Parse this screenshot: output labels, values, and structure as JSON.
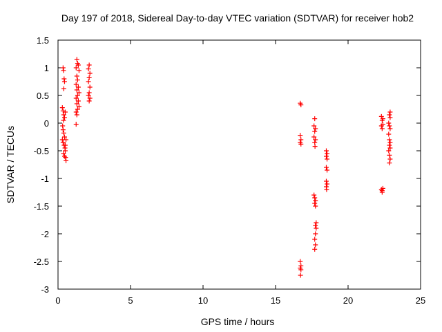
{
  "chart_data": {
    "type": "scatter",
    "title": "Day 197 of 2018, Sidereal Day-to-day VTEC variation (SDTVAR) for receiver hob2",
    "xlabel": "GPS time / hours",
    "ylabel": "SDTVAR / TECUs",
    "xlim": [
      0,
      25
    ],
    "ylim": [
      -3,
      1.5
    ],
    "xticks": [
      "0",
      "5",
      "10",
      "15",
      "20",
      "25"
    ],
    "yticks": [
      "1.5",
      "1",
      "0.5",
      "0",
      "-0.5",
      "-1",
      "-1.5",
      "-2",
      "-2.5",
      "-3"
    ],
    "grid": false,
    "marker": "+",
    "marker_color": "#ff0000",
    "series": [
      {
        "name": "hob2",
        "points": [
          [
            0.35,
            1.0
          ],
          [
            0.38,
            0.95
          ],
          [
            0.42,
            0.8
          ],
          [
            0.45,
            0.75
          ],
          [
            0.4,
            0.62
          ],
          [
            0.3,
            0.28
          ],
          [
            0.35,
            0.22
          ],
          [
            0.4,
            0.15
          ],
          [
            0.45,
            0.1
          ],
          [
            0.5,
            0.2
          ],
          [
            0.38,
            0.05
          ],
          [
            0.32,
            -0.05
          ],
          [
            0.35,
            -0.12
          ],
          [
            0.4,
            -0.18
          ],
          [
            0.45,
            -0.25
          ],
          [
            0.3,
            -0.3
          ],
          [
            0.35,
            -0.35
          ],
          [
            0.42,
            -0.4
          ],
          [
            0.48,
            -0.45
          ],
          [
            0.5,
            -0.5
          ],
          [
            0.38,
            -0.55
          ],
          [
            0.45,
            -0.6
          ],
          [
            0.52,
            -0.62
          ],
          [
            0.55,
            -0.68
          ],
          [
            0.5,
            -0.4
          ],
          [
            0.55,
            -0.3
          ],
          [
            1.3,
            1.15
          ],
          [
            1.35,
            1.08
          ],
          [
            1.4,
            1.05
          ],
          [
            1.25,
            1.0
          ],
          [
            1.45,
            0.95
          ],
          [
            1.3,
            0.85
          ],
          [
            1.35,
            0.78
          ],
          [
            1.25,
            0.7
          ],
          [
            1.4,
            0.65
          ],
          [
            1.3,
            0.6
          ],
          [
            1.45,
            0.55
          ],
          [
            1.35,
            0.5
          ],
          [
            1.25,
            0.45
          ],
          [
            1.4,
            0.4
          ],
          [
            1.3,
            0.35
          ],
          [
            1.45,
            0.3
          ],
          [
            1.35,
            0.25
          ],
          [
            1.25,
            0.2
          ],
          [
            1.3,
            0.15
          ],
          [
            1.25,
            -0.02
          ],
          [
            2.15,
            1.05
          ],
          [
            2.1,
            0.98
          ],
          [
            2.2,
            0.9
          ],
          [
            2.15,
            0.82
          ],
          [
            2.1,
            0.75
          ],
          [
            2.2,
            0.65
          ],
          [
            2.15,
            0.55
          ],
          [
            2.1,
            0.5
          ],
          [
            2.2,
            0.45
          ],
          [
            2.15,
            0.4
          ],
          [
            16.7,
            0.36
          ],
          [
            16.75,
            0.33
          ],
          [
            16.7,
            -0.22
          ],
          [
            16.75,
            -0.3
          ],
          [
            16.7,
            -0.35
          ],
          [
            16.75,
            -0.38
          ],
          [
            16.7,
            -2.5
          ],
          [
            16.75,
            -2.58
          ],
          [
            16.7,
            -2.62
          ],
          [
            16.75,
            -2.65
          ],
          [
            16.72,
            -2.75
          ],
          [
            17.7,
            0.08
          ],
          [
            17.65,
            -0.05
          ],
          [
            17.75,
            -0.1
          ],
          [
            17.7,
            -0.15
          ],
          [
            17.65,
            -0.25
          ],
          [
            17.75,
            -0.3
          ],
          [
            17.7,
            -0.35
          ],
          [
            17.72,
            -0.42
          ],
          [
            17.65,
            -1.3
          ],
          [
            17.7,
            -1.35
          ],
          [
            17.75,
            -1.4
          ],
          [
            17.7,
            -1.45
          ],
          [
            17.75,
            -1.5
          ],
          [
            17.8,
            -1.8
          ],
          [
            17.75,
            -1.85
          ],
          [
            17.8,
            -1.9
          ],
          [
            17.75,
            -2.0
          ],
          [
            17.7,
            -2.1
          ],
          [
            17.75,
            -2.2
          ],
          [
            17.7,
            -2.28
          ],
          [
            18.5,
            -0.5
          ],
          [
            18.55,
            -0.55
          ],
          [
            18.5,
            -0.6
          ],
          [
            18.55,
            -0.65
          ],
          [
            18.5,
            -0.8
          ],
          [
            18.55,
            -0.85
          ],
          [
            18.5,
            -1.05
          ],
          [
            18.55,
            -1.1
          ],
          [
            18.5,
            -1.15
          ],
          [
            18.52,
            -1.2
          ],
          [
            22.3,
            0.12
          ],
          [
            22.35,
            0.05
          ],
          [
            22.4,
            -0.02
          ],
          [
            22.3,
            -0.05
          ],
          [
            22.35,
            -0.1
          ],
          [
            22.4,
            0.08
          ],
          [
            22.3,
            -1.2
          ],
          [
            22.35,
            -1.25
          ],
          [
            22.4,
            -1.18
          ],
          [
            22.35,
            -1.22
          ],
          [
            22.9,
            0.2
          ],
          [
            22.85,
            0.15
          ],
          [
            22.9,
            0.1
          ],
          [
            22.8,
            0.0
          ],
          [
            22.85,
            -0.05
          ],
          [
            22.9,
            -0.1
          ],
          [
            22.8,
            -0.2
          ],
          [
            22.85,
            -0.3
          ],
          [
            22.9,
            -0.35
          ],
          [
            22.85,
            -0.4
          ],
          [
            22.9,
            -0.45
          ],
          [
            22.8,
            -0.5
          ],
          [
            22.85,
            -0.58
          ],
          [
            22.9,
            -0.65
          ],
          [
            22.85,
            -0.72
          ]
        ]
      }
    ]
  }
}
